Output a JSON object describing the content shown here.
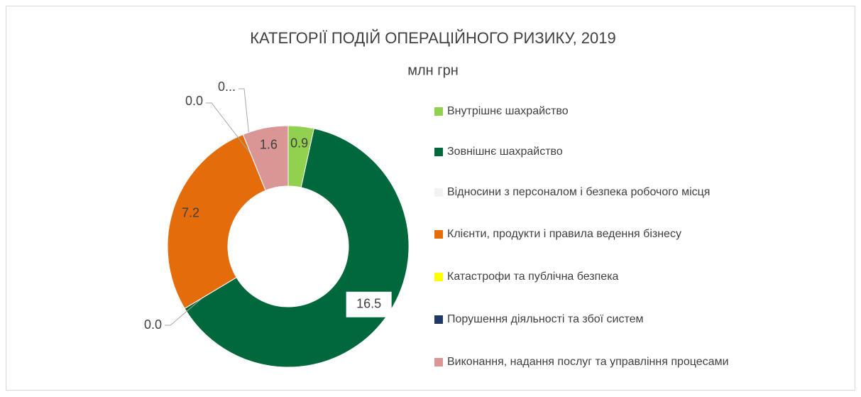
{
  "chart_data": {
    "type": "donut",
    "title": "КАТЕГОРІЇ ПОДІЙ ОПЕРАЦІЙНОГО РИЗИКУ, 2019",
    "subtitle": "млн грн",
    "categories": [
      "Внутрішнє шахрайство",
      "Зовнішнє шахрайство",
      "Відносини з персоналом і безпека робочого місця",
      "Клієнти, продукти і правила ведення бізнесу",
      "Катастрофи та публічна безпека",
      "Порушення діяльності та збої систем",
      "Виконання, надання послуг та управління процесами"
    ],
    "values": [
      0.9,
      16.5,
      0.0,
      7.2,
      0.0,
      0.0,
      1.6
    ],
    "value_labels": [
      "0.9",
      "16.5",
      "0.0",
      "7.2",
      "0.0",
      "0...",
      "1.6"
    ],
    "colors": [
      "#92d050",
      "#00683a",
      "#f2f2f2",
      "#e46c0a",
      "#ffff00",
      "#1f3864",
      "#d99694"
    ],
    "legend": "right"
  }
}
